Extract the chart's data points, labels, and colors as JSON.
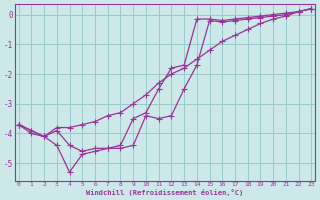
{
  "bg_color": "#cce8e8",
  "grid_color": "#99cccc",
  "line_color": "#993399",
  "xlim_min": -0.3,
  "xlim_max": 23.3,
  "ylim_min": -5.6,
  "ylim_max": 0.35,
  "yticks": [
    0,
    -1,
    -2,
    -3,
    -4,
    -5
  ],
  "xticks": [
    0,
    1,
    2,
    3,
    4,
    5,
    6,
    7,
    8,
    9,
    10,
    11,
    12,
    13,
    14,
    15,
    16,
    17,
    18,
    19,
    20,
    21,
    22,
    23
  ],
  "xlabel": "Windchill (Refroidissement éolien,°C)",
  "line1_x": [
    0,
    1,
    2,
    3,
    4,
    5,
    6,
    7,
    8,
    9,
    10,
    11,
    12,
    13,
    14,
    15,
    16,
    17,
    18,
    19,
    20,
    21,
    22,
    23
  ],
  "line1_y": [
    -3.7,
    -3.9,
    -4.1,
    -3.8,
    -3.8,
    -3.7,
    -3.6,
    -3.4,
    -3.3,
    -3.0,
    -2.7,
    -2.3,
    -2.0,
    -1.8,
    -1.5,
    -1.2,
    -0.9,
    -0.7,
    -0.5,
    -0.3,
    -0.15,
    -0.05,
    0.1,
    0.2
  ],
  "line2_x": [
    0,
    1,
    2,
    3,
    4,
    5,
    6,
    7,
    8,
    9,
    10,
    11,
    12,
    13,
    14,
    15,
    16,
    17,
    18,
    19,
    20,
    21,
    22,
    23
  ],
  "line2_y": [
    -3.7,
    -4.0,
    -4.1,
    -4.4,
    -5.3,
    -4.7,
    -4.6,
    -4.5,
    -4.4,
    -3.5,
    -3.3,
    -2.5,
    -1.8,
    -1.7,
    -0.15,
    -0.15,
    -0.2,
    -0.15,
    -0.1,
    -0.05,
    0.0,
    0.05,
    0.1,
    0.2
  ],
  "line3_x": [
    0,
    1,
    2,
    3,
    4,
    5,
    6,
    7,
    8,
    9,
    10,
    11,
    12,
    13,
    14,
    15,
    16,
    17,
    18,
    19,
    20,
    21,
    22,
    23
  ],
  "line3_y": [
    -3.7,
    -3.9,
    -4.1,
    -3.9,
    -4.4,
    -4.6,
    -4.5,
    -4.5,
    -4.5,
    -4.4,
    -3.4,
    -3.5,
    -3.4,
    -2.5,
    -1.7,
    -0.2,
    -0.25,
    -0.2,
    -0.15,
    -0.1,
    -0.05,
    0.0,
    0.1,
    0.2
  ]
}
